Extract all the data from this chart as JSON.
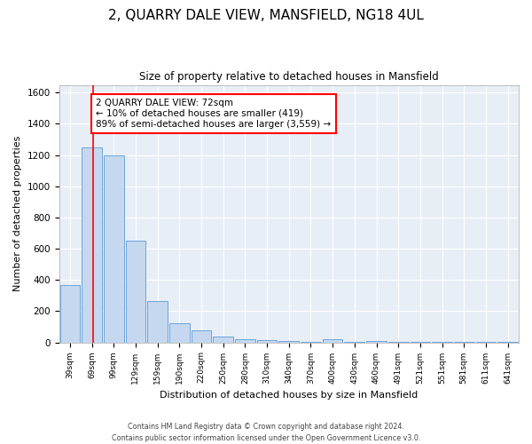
{
  "title": "2, QUARRY DALE VIEW, MANSFIELD, NG18 4UL",
  "subtitle": "Size of property relative to detached houses in Mansfield",
  "xlabel": "Distribution of detached houses by size in Mansfield",
  "ylabel": "Number of detached properties",
  "bar_labels": [
    "39sqm",
    "69sqm",
    "99sqm",
    "129sqm",
    "159sqm",
    "190sqm",
    "220sqm",
    "250sqm",
    "280sqm",
    "310sqm",
    "340sqm",
    "370sqm",
    "400sqm",
    "430sqm",
    "460sqm",
    "491sqm",
    "521sqm",
    "551sqm",
    "581sqm",
    "611sqm",
    "641sqm"
  ],
  "bar_values": [
    370,
    1250,
    1200,
    650,
    265,
    120,
    75,
    40,
    20,
    15,
    8,
    5,
    20,
    5,
    10,
    3,
    2,
    2,
    2,
    2,
    2
  ],
  "bar_color": "#c5d8f0",
  "bar_edge_color": "#5b9bd5",
  "background_color": "#ffffff",
  "plot_bg_color": "#e8eef6",
  "redline_x": 1.05,
  "annotation_text": "2 QUARRY DALE VIEW: 72sqm\n← 10% of detached houses are smaller (419)\n89% of semi-detached houses are larger (3,559) →",
  "annotation_box_color": "white",
  "annotation_box_edge": "red",
  "ylim": [
    0,
    1650
  ],
  "yticks": [
    0,
    200,
    400,
    600,
    800,
    1000,
    1200,
    1400,
    1600
  ],
  "footer_line1": "Contains HM Land Registry data © Crown copyright and database right 2024.",
  "footer_line2": "Contains public sector information licensed under the Open Government Licence v3.0."
}
